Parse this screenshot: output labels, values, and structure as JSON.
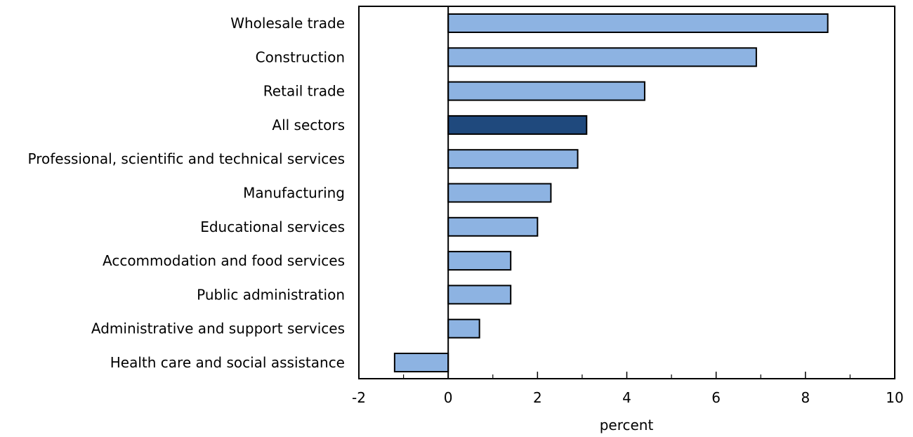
{
  "chart_data": {
    "type": "bar",
    "orientation": "horizontal",
    "categories": [
      "Wholesale trade",
      "Construction",
      "Retail trade",
      "All sectors",
      "Professional, scientific and technical services",
      "Manufacturing",
      "Educational services",
      "Accommodation and food services",
      "Public administration",
      "Administrative and support services",
      "Health care and social assistance"
    ],
    "values": [
      8.5,
      6.9,
      4.4,
      3.1,
      2.9,
      2.3,
      2.0,
      1.4,
      1.4,
      0.7,
      -1.2
    ],
    "highlight_category": "All sectors",
    "colors": {
      "bar": "#8db3e2",
      "highlight": "#1f497d",
      "outline": "#000000"
    },
    "xlabel": "percent",
    "ylabel": "",
    "xlim": [
      -2,
      10
    ],
    "x_ticks": [
      -2,
      0,
      2,
      4,
      6,
      8,
      10
    ],
    "grid": false
  }
}
